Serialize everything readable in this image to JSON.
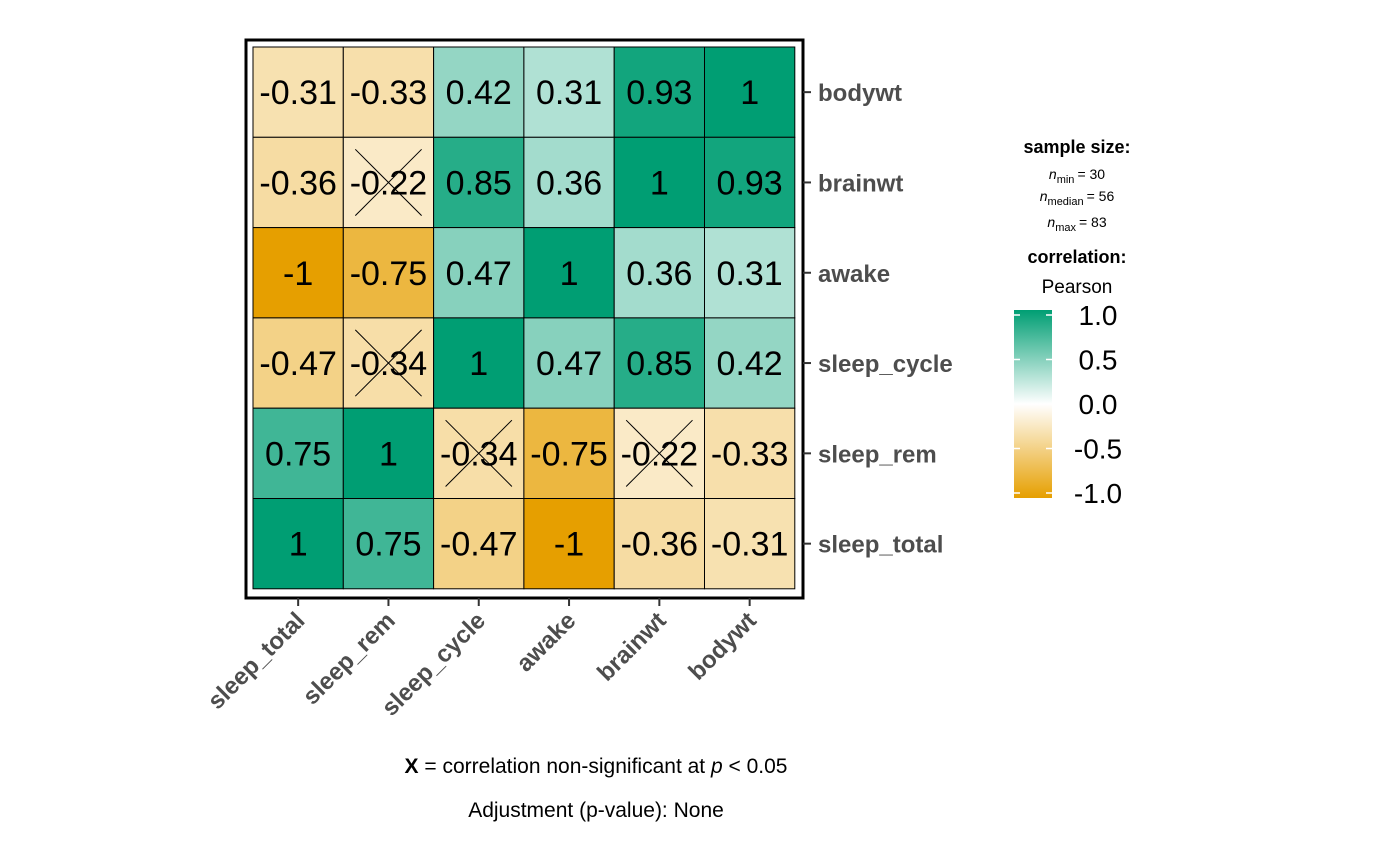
{
  "chart_data": {
    "type": "heatmap",
    "variables_x": [
      "sleep_total",
      "sleep_rem",
      "sleep_cycle",
      "awake",
      "brainwt",
      "bodywt"
    ],
    "variables_y_top_to_bottom": [
      "bodywt",
      "brainwt",
      "awake",
      "sleep_cycle",
      "sleep_rem",
      "sleep_total"
    ],
    "values": [
      [
        -0.31,
        -0.33,
        0.42,
        0.31,
        0.93,
        1
      ],
      [
        -0.36,
        -0.22,
        0.85,
        0.36,
        1,
        0.93
      ],
      [
        -1,
        -0.75,
        0.47,
        1,
        0.36,
        0.31
      ],
      [
        -0.47,
        -0.34,
        1,
        0.47,
        0.85,
        0.42
      ],
      [
        0.75,
        1,
        -0.34,
        -0.75,
        -0.22,
        -0.33
      ],
      [
        1,
        0.75,
        -0.47,
        -1,
        -0.36,
        -0.31
      ]
    ],
    "labels": [
      [
        "-0.31",
        "-0.33",
        "0.42",
        "0.31",
        "0.93",
        "1"
      ],
      [
        "-0.36",
        "-0.22",
        "0.85",
        "0.36",
        "1",
        "0.93"
      ],
      [
        "-1",
        "-0.75",
        "0.47",
        "1",
        "0.36",
        "0.31"
      ],
      [
        "-0.47",
        "-0.34",
        "1",
        "0.47",
        "0.85",
        "0.42"
      ],
      [
        "0.75",
        "1",
        "-0.34",
        "-0.75",
        "-0.22",
        "-0.33"
      ],
      [
        "1",
        "0.75",
        "-0.47",
        "-1",
        "-0.36",
        "-0.31"
      ]
    ],
    "non_significant": [
      [
        false,
        false,
        false,
        false,
        false,
        false
      ],
      [
        false,
        true,
        false,
        false,
        false,
        false
      ],
      [
        false,
        false,
        false,
        false,
        false,
        false
      ],
      [
        false,
        true,
        false,
        false,
        false,
        false
      ],
      [
        false,
        false,
        true,
        false,
        true,
        false
      ],
      [
        false,
        false,
        false,
        false,
        false,
        false
      ]
    ],
    "color_low": "#E69F00",
    "color_mid": "#FFFFFF",
    "color_high": "#009E73",
    "color_range": [
      -1,
      1
    ]
  },
  "legend": {
    "sample_size_title": "sample size:",
    "n_min_label": "min",
    "n_min_value": "= 30",
    "n_median_label": "median",
    "n_median_value": "= 56",
    "n_max_label": "max",
    "n_max_value": "= 83",
    "n_symbol": "n",
    "correlation_title": "correlation:",
    "method": "Pearson",
    "ticks": [
      "1.0",
      "0.5",
      "0.0",
      "-0.5",
      "-1.0"
    ]
  },
  "caption": {
    "x_mark": "X",
    "line1_text": " = correlation non-significant at ",
    "p_symbol": "p",
    "line1_tail": " < 0.05",
    "line2": "Adjustment (p-value): None"
  }
}
